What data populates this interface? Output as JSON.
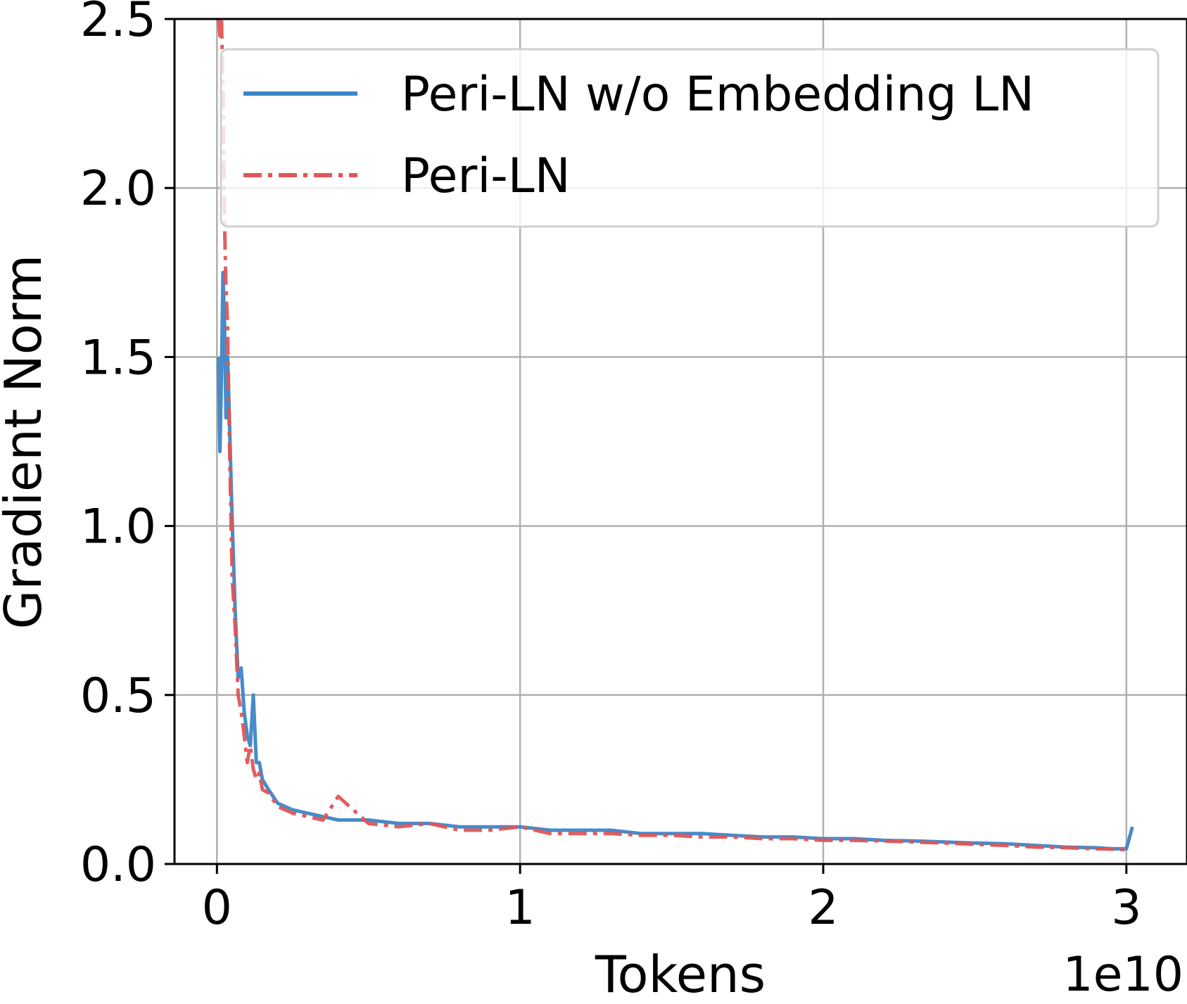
{
  "chart_data": {
    "type": "line",
    "title": "",
    "xlabel": "Tokens",
    "ylabel": "Gradient Norm",
    "x_offset_label": "1e10",
    "xlim": [
      -0.14,
      3.2
    ],
    "ylim": [
      0,
      2.5
    ],
    "x_ticks": [
      0,
      1,
      2,
      3
    ],
    "x_tick_labels": [
      "0",
      "1",
      "2",
      "3"
    ],
    "y_ticks": [
      0.0,
      0.5,
      1.0,
      1.5,
      2.0,
      2.5
    ],
    "y_tick_labels": [
      "0.0",
      "0.5",
      "1.0",
      "1.5",
      "2.0",
      "2.5"
    ],
    "grid": true,
    "legend_position": "top-right",
    "series": [
      {
        "name": "Peri-LN w/o Embedding LN",
        "color": "#3d85c6",
        "style": "solid",
        "x": [
          0.005,
          0.01,
          0.015,
          0.02,
          0.025,
          0.03,
          0.035,
          0.04,
          0.05,
          0.06,
          0.07,
          0.08,
          0.09,
          0.1,
          0.11,
          0.12,
          0.13,
          0.14,
          0.15,
          0.17,
          0.2,
          0.25,
          0.3,
          0.35,
          0.4,
          0.5,
          0.6,
          0.7,
          0.8,
          0.9,
          1.0,
          1.1,
          1.2,
          1.3,
          1.4,
          1.5,
          1.6,
          1.7,
          1.8,
          1.9,
          2.0,
          2.1,
          2.2,
          2.3,
          2.4,
          2.5,
          2.6,
          2.7,
          2.8,
          2.9,
          2.95,
          3.0,
          3.02
        ],
        "y": [
          1.5,
          1.22,
          1.45,
          1.75,
          1.6,
          1.32,
          1.5,
          1.35,
          1.02,
          0.75,
          0.55,
          0.58,
          0.45,
          0.38,
          0.35,
          0.5,
          0.3,
          0.3,
          0.25,
          0.22,
          0.18,
          0.16,
          0.15,
          0.14,
          0.13,
          0.13,
          0.12,
          0.12,
          0.11,
          0.11,
          0.11,
          0.1,
          0.1,
          0.1,
          0.09,
          0.09,
          0.09,
          0.085,
          0.08,
          0.08,
          0.075,
          0.075,
          0.07,
          0.068,
          0.065,
          0.062,
          0.06,
          0.055,
          0.05,
          0.048,
          0.045,
          0.045,
          0.11
        ]
      },
      {
        "name": "Peri-LN",
        "color": "#e05555",
        "style": "dashdot",
        "x": [
          0.005,
          0.01,
          0.015,
          0.02,
          0.025,
          0.03,
          0.035,
          0.04,
          0.05,
          0.06,
          0.07,
          0.08,
          0.09,
          0.1,
          0.11,
          0.12,
          0.13,
          0.14,
          0.15,
          0.17,
          0.2,
          0.25,
          0.3,
          0.35,
          0.4,
          0.5,
          0.6,
          0.7,
          0.8,
          0.9,
          1.0,
          1.1,
          1.2,
          1.3,
          1.4,
          1.5,
          1.6,
          1.7,
          1.8,
          1.9,
          2.0,
          2.1,
          2.2,
          2.3,
          2.4,
          2.5,
          2.6,
          2.7,
          2.8,
          2.9,
          2.95,
          3.0
        ],
        "y": [
          2.5,
          2.45,
          2.5,
          2.3,
          1.9,
          1.7,
          1.6,
          1.3,
          0.85,
          0.7,
          0.5,
          0.45,
          0.38,
          0.3,
          0.35,
          0.28,
          0.25,
          0.27,
          0.22,
          0.21,
          0.17,
          0.15,
          0.14,
          0.13,
          0.2,
          0.12,
          0.11,
          0.12,
          0.1,
          0.1,
          0.11,
          0.09,
          0.09,
          0.09,
          0.085,
          0.085,
          0.08,
          0.08,
          0.075,
          0.075,
          0.07,
          0.07,
          0.068,
          0.065,
          0.062,
          0.058,
          0.055,
          0.05,
          0.048,
          0.045,
          0.044,
          0.042
        ]
      }
    ]
  }
}
